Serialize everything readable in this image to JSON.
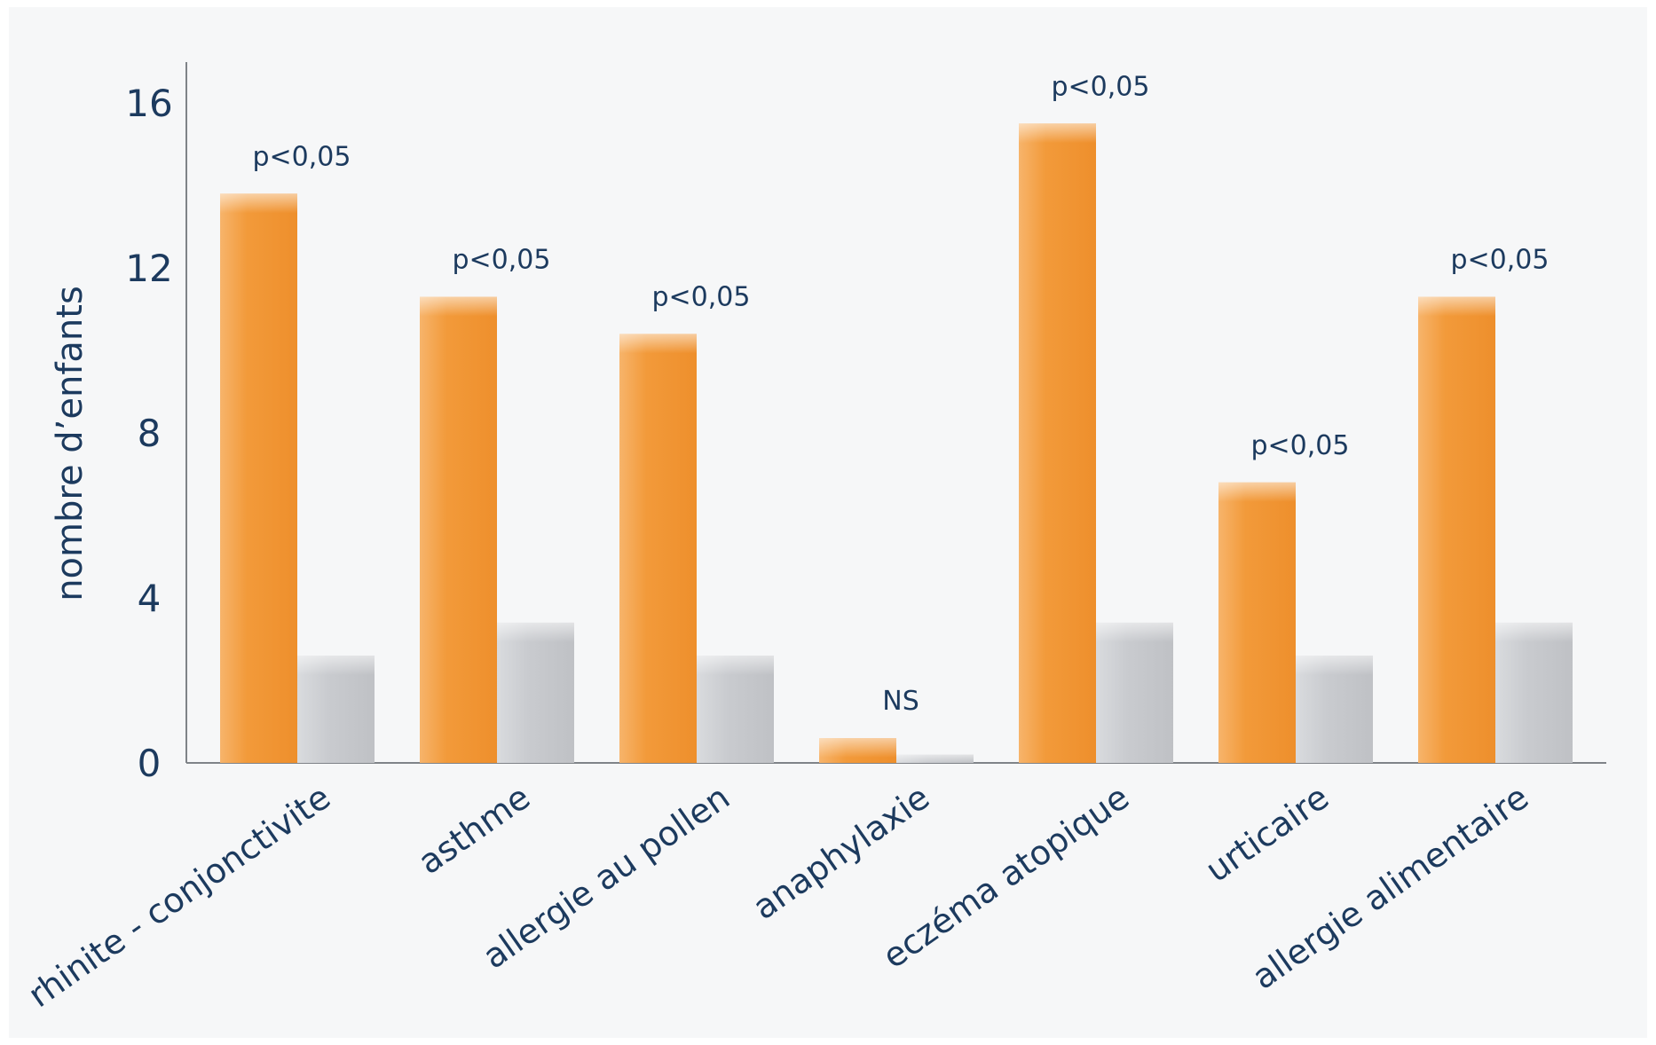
{
  "chart_data": {
    "type": "bar",
    "title": "",
    "xlabel": "",
    "ylabel": "nombre d’enfants",
    "ylim": [
      0,
      17
    ],
    "yticks": [
      0,
      4,
      8,
      12,
      16
    ],
    "grid": false,
    "legend": "none",
    "categories": [
      "rhinite - conjonctivite",
      "asthme",
      "allergie au pollen",
      "anaphylaxie",
      "eczéma atopique",
      "urticaire",
      "allergie alimentaire"
    ],
    "series": [
      {
        "values": [
          13.8,
          11.3,
          10.4,
          0.6,
          15.5,
          6.8,
          11.3
        ],
        "color": "#f29a3a"
      },
      {
        "values": [
          2.6,
          3.4,
          2.6,
          0.2,
          3.4,
          2.6,
          3.4
        ],
        "color": "#c4c6ca"
      }
    ],
    "annotations": [
      "p<0,05",
      "p<0,05",
      "p<0,05",
      "NS",
      "p<0,05",
      "p<0,05",
      "p<0,05"
    ],
    "colors": {
      "text": "#1c3a5e",
      "axis": "#7f8388",
      "background_panel": "#f3f4f6"
    }
  }
}
